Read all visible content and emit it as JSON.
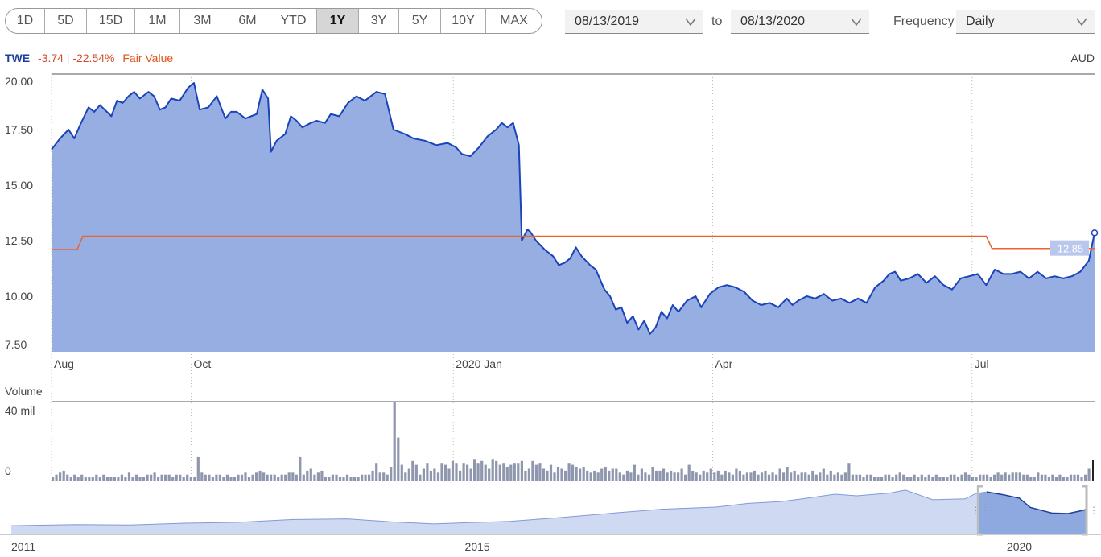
{
  "toolbar": {
    "ranges": [
      "1D",
      "5D",
      "15D",
      "1M",
      "3M",
      "6M",
      "YTD",
      "1Y",
      "3Y",
      "5Y",
      "10Y",
      "MAX"
    ],
    "active_range": "1Y",
    "start_date": "08/13/2019",
    "to_label": "to",
    "end_date": "08/13/2020",
    "frequency_label": "Frequency",
    "frequency_value": "Daily"
  },
  "legend": {
    "symbol": "TWE",
    "change": "-3.74 | -22.54%",
    "fair_value_label": "Fair Value",
    "currency": "AUD"
  },
  "colors": {
    "price_line": "#1b44b8",
    "price_fill": "#97aee2",
    "fair_value": "#e8642e",
    "volume": "#8e97ad",
    "navigator_fill": "#cfd9f2",
    "navigator_line": "#7f9bd8"
  },
  "chart_data": [
    {
      "type": "area",
      "name": "price",
      "ylim": [
        7.5,
        20.0
      ],
      "yticks": [
        "20.00",
        "17.50",
        "15.00",
        "12.50",
        "10.00",
        "7.50"
      ],
      "xticks": [
        {
          "label": "Aug",
          "date": "2019-08-13"
        },
        {
          "label": "Oct",
          "date": "2019-10-01"
        },
        {
          "label": "2020 Jan",
          "date": "2020-01-01"
        },
        {
          "label": "Apr",
          "date": "2020-04-01"
        },
        {
          "label": "Jul",
          "date": "2020-07-01"
        }
      ],
      "last_value_label": "12.85",
      "series": [
        {
          "name": "TWE",
          "points": [
            [
              "2019-08-13",
              16.6
            ],
            [
              "2019-08-16",
              17.1
            ],
            [
              "2019-08-19",
              17.5
            ],
            [
              "2019-08-21",
              17.1
            ],
            [
              "2019-08-23",
              17.7
            ],
            [
              "2019-08-26",
              18.5
            ],
            [
              "2019-08-28",
              18.3
            ],
            [
              "2019-08-30",
              18.6
            ],
            [
              "2019-09-03",
              18.1
            ],
            [
              "2019-09-05",
              18.8
            ],
            [
              "2019-09-07",
              18.7
            ],
            [
              "2019-09-09",
              19.0
            ],
            [
              "2019-09-11",
              19.2
            ],
            [
              "2019-09-13",
              18.9
            ],
            [
              "2019-09-16",
              19.2
            ],
            [
              "2019-09-18",
              19.0
            ],
            [
              "2019-09-20",
              18.4
            ],
            [
              "2019-09-22",
              18.5
            ],
            [
              "2019-09-24",
              18.9
            ],
            [
              "2019-09-27",
              18.8
            ],
            [
              "2019-09-30",
              19.4
            ],
            [
              "2019-10-02",
              19.6
            ],
            [
              "2019-10-04",
              18.4
            ],
            [
              "2019-10-07",
              18.5
            ],
            [
              "2019-10-10",
              19.0
            ],
            [
              "2019-10-13",
              18.0
            ],
            [
              "2019-10-15",
              18.3
            ],
            [
              "2019-10-17",
              18.3
            ],
            [
              "2019-10-20",
              18.0
            ],
            [
              "2019-10-22",
              18.1
            ],
            [
              "2019-10-24",
              18.2
            ],
            [
              "2019-10-26",
              19.3
            ],
            [
              "2019-10-28",
              18.9
            ],
            [
              "2019-10-29",
              16.5
            ],
            [
              "2019-10-31",
              17.0
            ],
            [
              "2019-11-03",
              17.3
            ],
            [
              "2019-11-05",
              18.1
            ],
            [
              "2019-11-07",
              17.9
            ],
            [
              "2019-11-09",
              17.6
            ],
            [
              "2019-11-12",
              17.8
            ],
            [
              "2019-11-14",
              17.9
            ],
            [
              "2019-11-17",
              17.8
            ],
            [
              "2019-11-19",
              18.2
            ],
            [
              "2019-11-22",
              18.1
            ],
            [
              "2019-11-25",
              18.7
            ],
            [
              "2019-11-28",
              19.0
            ],
            [
              "2019-12-01",
              18.8
            ],
            [
              "2019-12-05",
              19.2
            ],
            [
              "2019-12-08",
              19.1
            ],
            [
              "2019-12-11",
              17.5
            ],
            [
              "2019-12-15",
              17.3
            ],
            [
              "2019-12-18",
              17.1
            ],
            [
              "2019-12-22",
              17.0
            ],
            [
              "2019-12-26",
              16.8
            ],
            [
              "2019-12-30",
              16.9
            ],
            [
              "2020-01-02",
              16.7
            ],
            [
              "2020-01-04",
              16.4
            ],
            [
              "2020-01-07",
              16.3
            ],
            [
              "2020-01-10",
              16.7
            ],
            [
              "2020-01-13",
              17.2
            ],
            [
              "2020-01-16",
              17.5
            ],
            [
              "2020-01-18",
              17.8
            ],
            [
              "2020-01-20",
              17.6
            ],
            [
              "2020-01-22",
              17.8
            ],
            [
              "2020-01-24",
              16.8
            ],
            [
              "2020-01-25",
              12.5
            ],
            [
              "2020-01-27",
              13.0
            ],
            [
              "2020-01-28",
              12.9
            ],
            [
              "2020-01-30",
              12.5
            ],
            [
              "2020-02-02",
              12.1
            ],
            [
              "2020-02-05",
              11.8
            ],
            [
              "2020-02-07",
              11.4
            ],
            [
              "2020-02-09",
              11.5
            ],
            [
              "2020-02-11",
              11.7
            ],
            [
              "2020-02-13",
              12.2
            ],
            [
              "2020-02-15",
              11.8
            ],
            [
              "2020-02-18",
              11.4
            ],
            [
              "2020-02-20",
              11.2
            ],
            [
              "2020-02-23",
              10.3
            ],
            [
              "2020-02-25",
              10.0
            ],
            [
              "2020-02-27",
              9.4
            ],
            [
              "2020-02-29",
              9.5
            ],
            [
              "2020-03-02",
              8.8
            ],
            [
              "2020-03-04",
              9.1
            ],
            [
              "2020-03-06",
              8.5
            ],
            [
              "2020-03-08",
              8.9
            ],
            [
              "2020-03-10",
              8.3
            ],
            [
              "2020-03-12",
              8.6
            ],
            [
              "2020-03-14",
              9.3
            ],
            [
              "2020-03-16",
              9.0
            ],
            [
              "2020-03-18",
              9.6
            ],
            [
              "2020-03-20",
              9.3
            ],
            [
              "2020-03-23",
              9.8
            ],
            [
              "2020-03-26",
              10.0
            ],
            [
              "2020-03-28",
              9.5
            ],
            [
              "2020-03-31",
              10.1
            ],
            [
              "2020-04-03",
              10.4
            ],
            [
              "2020-04-06",
              10.5
            ],
            [
              "2020-04-09",
              10.4
            ],
            [
              "2020-04-12",
              10.2
            ],
            [
              "2020-04-15",
              9.8
            ],
            [
              "2020-04-18",
              9.6
            ],
            [
              "2020-04-21",
              9.7
            ],
            [
              "2020-04-24",
              9.5
            ],
            [
              "2020-04-27",
              9.9
            ],
            [
              "2020-04-29",
              9.6
            ],
            [
              "2020-05-01",
              9.8
            ],
            [
              "2020-05-04",
              10.0
            ],
            [
              "2020-05-07",
              9.9
            ],
            [
              "2020-05-10",
              10.1
            ],
            [
              "2020-05-13",
              9.8
            ],
            [
              "2020-05-16",
              9.9
            ],
            [
              "2020-05-19",
              9.7
            ],
            [
              "2020-05-22",
              9.9
            ],
            [
              "2020-05-25",
              9.7
            ],
            [
              "2020-05-28",
              10.4
            ],
            [
              "2020-05-31",
              10.7
            ],
            [
              "2020-06-02",
              11.0
            ],
            [
              "2020-06-04",
              11.1
            ],
            [
              "2020-06-06",
              10.7
            ],
            [
              "2020-06-09",
              10.8
            ],
            [
              "2020-06-12",
              11.0
            ],
            [
              "2020-06-15",
              10.6
            ],
            [
              "2020-06-18",
              10.9
            ],
            [
              "2020-06-21",
              10.5
            ],
            [
              "2020-06-24",
              10.3
            ],
            [
              "2020-06-27",
              10.8
            ],
            [
              "2020-06-30",
              10.9
            ],
            [
              "2020-07-03",
              11.0
            ],
            [
              "2020-07-06",
              10.5
            ],
            [
              "2020-07-09",
              11.2
            ],
            [
              "2020-07-12",
              11.0
            ],
            [
              "2020-07-15",
              11.0
            ],
            [
              "2020-07-18",
              11.1
            ],
            [
              "2020-07-21",
              10.8
            ],
            [
              "2020-07-24",
              11.1
            ],
            [
              "2020-07-27",
              10.8
            ],
            [
              "2020-07-30",
              10.9
            ],
            [
              "2020-08-02",
              10.8
            ],
            [
              "2020-08-05",
              10.9
            ],
            [
              "2020-08-08",
              11.1
            ],
            [
              "2020-08-11",
              11.6
            ],
            [
              "2020-08-13",
              12.85
            ]
          ]
        },
        {
          "name": "Fair Value",
          "points": [
            [
              "2019-08-13",
              12.1
            ],
            [
              "2019-08-22",
              12.1
            ],
            [
              "2019-08-24",
              12.7
            ],
            [
              "2020-07-06",
              12.7
            ],
            [
              "2020-07-08",
              12.15
            ],
            [
              "2020-08-13",
              12.15
            ]
          ]
        }
      ]
    },
    {
      "type": "bar",
      "name": "volume",
      "title": "Volume",
      "yticks": [
        "40 mil",
        "0"
      ],
      "ylim": [
        0,
        40
      ],
      "y_unit": "mil",
      "values": [
        2,
        3,
        4,
        5,
        3,
        2,
        3,
        2,
        3,
        2,
        2,
        2,
        3,
        2,
        3,
        2,
        2,
        2,
        2,
        3,
        2,
        4,
        2,
        3,
        2,
        2,
        3,
        3,
        4,
        2,
        3,
        3,
        3,
        2,
        3,
        3,
        2,
        3,
        2,
        2,
        12,
        4,
        3,
        3,
        2,
        3,
        3,
        2,
        3,
        2,
        2,
        3,
        3,
        4,
        2,
        3,
        4,
        5,
        4,
        3,
        3,
        3,
        2,
        3,
        3,
        4,
        4,
        3,
        12,
        3,
        5,
        6,
        3,
        4,
        5,
        2,
        2,
        3,
        3,
        2,
        2,
        3,
        2,
        2,
        2,
        3,
        3,
        3,
        5,
        9,
        4,
        4,
        3,
        7,
        40,
        22,
        8,
        4,
        6,
        10,
        8,
        3,
        6,
        9,
        5,
        6,
        4,
        9,
        8,
        6,
        10,
        9,
        5,
        9,
        8,
        6,
        11,
        9,
        10,
        8,
        6,
        11,
        10,
        8,
        9,
        7,
        8,
        9,
        9,
        10,
        5,
        6,
        10,
        8,
        9,
        6,
        5,
        8,
        4,
        7,
        6,
        5,
        9,
        8,
        7,
        6,
        7,
        5,
        4,
        5,
        4,
        6,
        7,
        5,
        6,
        6,
        4,
        3,
        5,
        4,
        8,
        3,
        6,
        4,
        3,
        7,
        5,
        5,
        6,
        4,
        5,
        4,
        4,
        6,
        3,
        8,
        5,
        4,
        3,
        5,
        4,
        6,
        4,
        5,
        3,
        5,
        4,
        3,
        6,
        5,
        3,
        4,
        4,
        5,
        3,
        4,
        5,
        3,
        4,
        3,
        6,
        4,
        7,
        4,
        5,
        3,
        4,
        4,
        3,
        5,
        3,
        4,
        6,
        3,
        5,
        3,
        4,
        3,
        4,
        9,
        3,
        3,
        3,
        2,
        3,
        3,
        2,
        2,
        2,
        3,
        3,
        2,
        3,
        4,
        3,
        2,
        2,
        3,
        2,
        3,
        2,
        3,
        2,
        3,
        2,
        2,
        2,
        3,
        3,
        2,
        3,
        4,
        3,
        2,
        2,
        3,
        3,
        3,
        2,
        3,
        4,
        3,
        4,
        3,
        4,
        4,
        4,
        3,
        3,
        2,
        2,
        4,
        3,
        3,
        2,
        3,
        2,
        3,
        2,
        2,
        3,
        3,
        3,
        2,
        3,
        6
      ]
    },
    {
      "type": "area",
      "name": "navigator",
      "xticks": [
        {
          "label": "2011",
          "year": 2011.0
        },
        {
          "label": "2015",
          "year": 2015.0
        },
        {
          "label": "2020",
          "year": 2020.0
        }
      ],
      "selection": [
        2019.62,
        2020.62
      ],
      "series": [
        {
          "name": "TWE",
          "points": [
            [
              2010.7,
              4.5
            ],
            [
              2011.3,
              5.0
            ],
            [
              2011.8,
              4.8
            ],
            [
              2012.3,
              5.6
            ],
            [
              2012.8,
              6.0
            ],
            [
              2013.3,
              7.2
            ],
            [
              2013.8,
              7.5
            ],
            [
              2014.2,
              6.2
            ],
            [
              2014.6,
              5.3
            ],
            [
              2014.9,
              5.8
            ],
            [
              2015.3,
              6.4
            ],
            [
              2015.8,
              8.2
            ],
            [
              2016.3,
              10.2
            ],
            [
              2016.7,
              11.7
            ],
            [
              2017.2,
              12.6
            ],
            [
              2017.5,
              14.2
            ],
            [
              2017.8,
              15.0
            ],
            [
              2018.0,
              16.2
            ],
            [
              2018.3,
              18.2
            ],
            [
              2018.5,
              17.5
            ],
            [
              2018.8,
              18.7
            ],
            [
              2018.95,
              20.0
            ],
            [
              2019.2,
              15.8
            ],
            [
              2019.5,
              16.2
            ],
            [
              2019.6,
              18.5
            ],
            [
              2019.7,
              19.2
            ],
            [
              2019.85,
              18.0
            ],
            [
              2020.0,
              16.5
            ],
            [
              2020.1,
              12.5
            ],
            [
              2020.3,
              10.0
            ],
            [
              2020.45,
              9.8
            ],
            [
              2020.55,
              10.8
            ],
            [
              2020.62,
              11.6
            ]
          ]
        }
      ]
    }
  ]
}
